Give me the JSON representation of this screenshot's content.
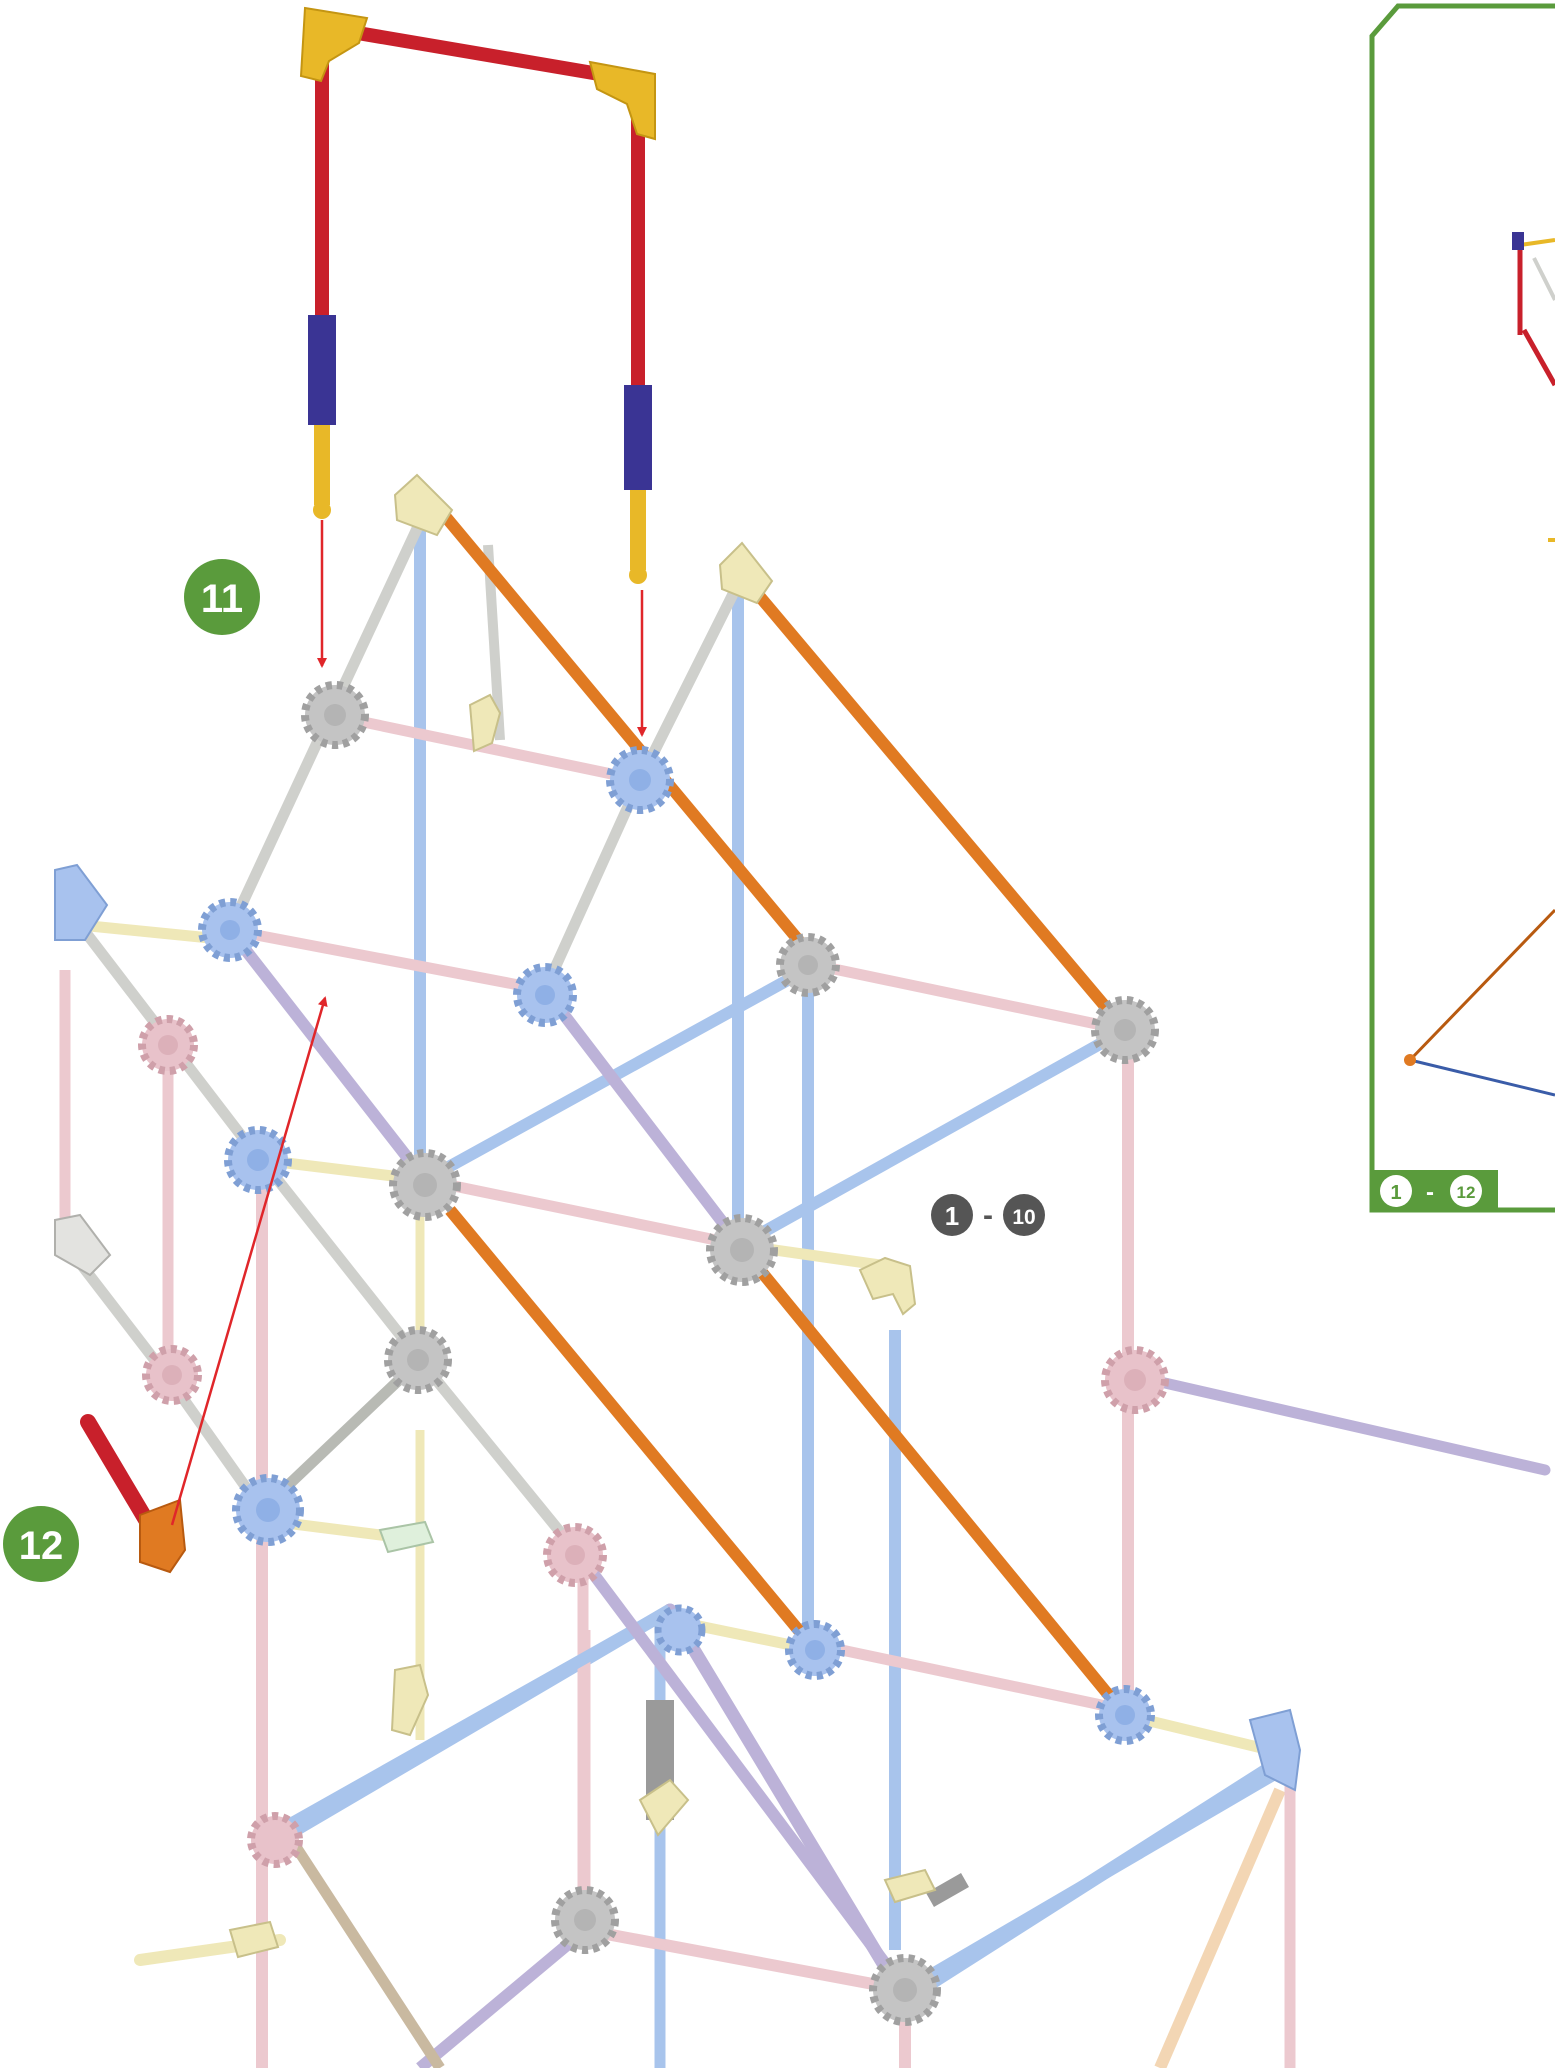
{
  "steps": {
    "step_11": "11",
    "step_12": "12"
  },
  "range_main": {
    "from": "1",
    "separator": "-",
    "to": "10"
  },
  "range_inset": {
    "from": "1",
    "separator": "-",
    "to": "12"
  },
  "colors": {
    "step_badge": "#5a9b3c",
    "inset_border": "#5a9b3c",
    "range_badge_dark": "#555555",
    "arrow": "#e0262a",
    "rod_red": "#c8202b",
    "rod_blue": "#a8c4ec",
    "rod_pink": "#ecc9cf",
    "rod_orange": "#e07a22",
    "rod_grey": "#cfd0cc",
    "rod_purple": "#bcb2d8",
    "rod_yellow": "#efe8b8",
    "connector_yellow": "#e8b828",
    "connector_navy": "#3a3494",
    "hub_blue": "#a8c2ee",
    "hub_grey": "#c4c4c4",
    "hub_pink": "#e8c2ca"
  }
}
